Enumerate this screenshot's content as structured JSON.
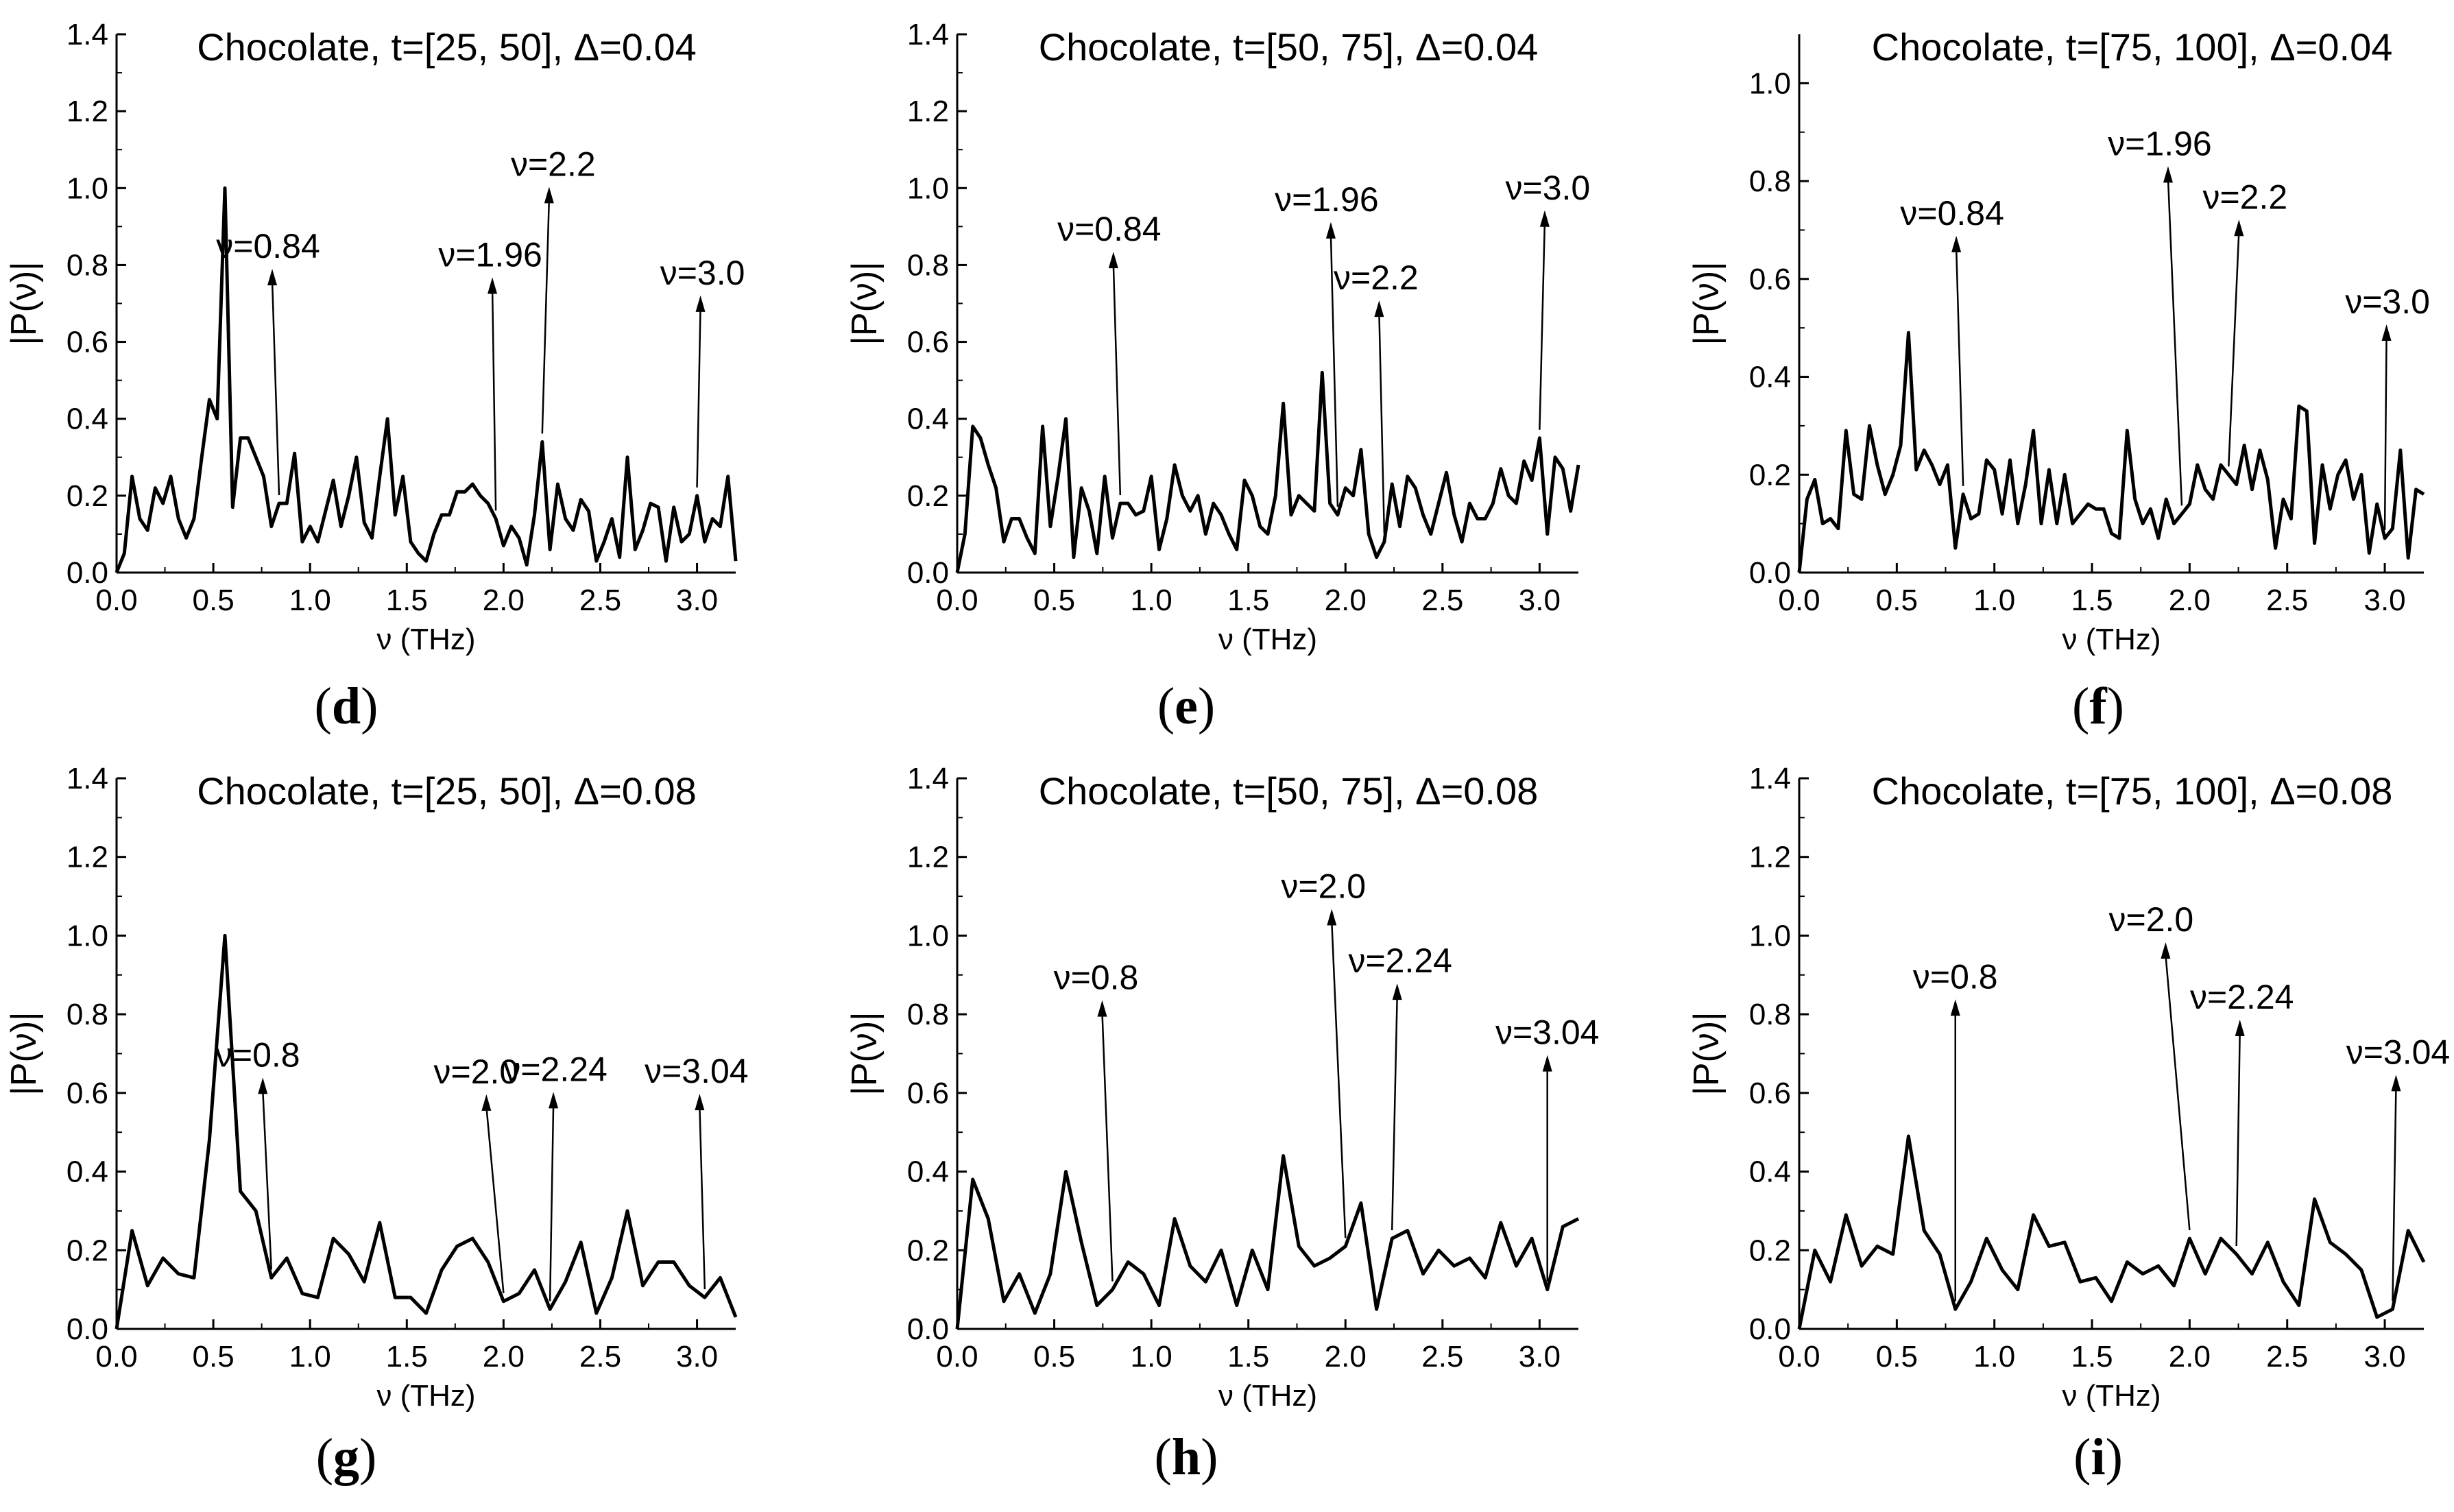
{
  "figure": {
    "ylabel": "|P(ν)|",
    "xlabel": "ν (THz)"
  },
  "chart_data": [
    {
      "id": "d",
      "label": "d",
      "type": "line",
      "title": "Chocolate, t=[25, 50], Δ=0.04",
      "xlabel": "ν (THz)",
      "ylabel": "|P(ν)|",
      "xlim": [
        0,
        3.2
      ],
      "ylim": [
        0,
        1.4
      ],
      "xticks": [
        "0.0",
        "0.5",
        "1.0",
        "1.5",
        "2.0",
        "2.5",
        "3.0"
      ],
      "yticks": [
        "0.0",
        "0.2",
        "0.4",
        "0.6",
        "0.8",
        "1.0",
        "1.2",
        "1.4"
      ],
      "series": [
        {
          "name": "|P(ν)|",
          "x": [
            0,
            0.04,
            0.08,
            0.12,
            0.16,
            0.2,
            0.24,
            0.28,
            0.32,
            0.36,
            0.4,
            0.44,
            0.48,
            0.52,
            0.56,
            0.6,
            0.64,
            0.68,
            0.72,
            0.76,
            0.8,
            0.84,
            0.88,
            0.92,
            0.96,
            1.0,
            1.04,
            1.08,
            1.12,
            1.16,
            1.2,
            1.24,
            1.28,
            1.32,
            1.36,
            1.4,
            1.44,
            1.48,
            1.52,
            1.56,
            1.6,
            1.64,
            1.68,
            1.72,
            1.76,
            1.8,
            1.84,
            1.88,
            1.92,
            1.96,
            2.0,
            2.04,
            2.08,
            2.12,
            2.16,
            2.2,
            2.24,
            2.28,
            2.32,
            2.36,
            2.4,
            2.44,
            2.48,
            2.52,
            2.56,
            2.6,
            2.64,
            2.68,
            2.72,
            2.76,
            2.8,
            2.84,
            2.88,
            2.92,
            2.96,
            3.0,
            3.04,
            3.08,
            3.12,
            3.16,
            3.2
          ],
          "y": [
            0.0,
            0.05,
            0.25,
            0.14,
            0.11,
            0.22,
            0.18,
            0.25,
            0.14,
            0.09,
            0.14,
            0.3,
            0.45,
            0.4,
            1.0,
            0.17,
            0.35,
            0.35,
            0.3,
            0.25,
            0.12,
            0.18,
            0.18,
            0.31,
            0.08,
            0.12,
            0.08,
            0.16,
            0.24,
            0.12,
            0.2,
            0.3,
            0.13,
            0.09,
            0.25,
            0.4,
            0.15,
            0.25,
            0.08,
            0.05,
            0.03,
            0.1,
            0.15,
            0.15,
            0.21,
            0.21,
            0.23,
            0.2,
            0.18,
            0.14,
            0.07,
            0.12,
            0.09,
            0.02,
            0.15,
            0.34,
            0.06,
            0.23,
            0.14,
            0.11,
            0.19,
            0.16,
            0.03,
            0.08,
            0.14,
            0.04,
            0.3,
            0.06,
            0.11,
            0.18,
            0.17,
            0.03,
            0.17,
            0.08,
            0.1,
            0.2,
            0.08,
            0.14,
            0.12,
            0.25,
            0.03
          ]
        }
      ],
      "annotations": [
        {
          "text": "ν=0.84",
          "x": 0.84
        },
        {
          "text": "ν=1.96",
          "x": 1.96
        },
        {
          "text": "ν=2.2",
          "x": 2.2
        },
        {
          "text": "ν=3.0",
          "x": 3.0
        }
      ]
    },
    {
      "id": "e",
      "label": "e",
      "type": "line",
      "title": "Chocolate, t=[50, 75], Δ=0.04",
      "xlabel": "ν (THz)",
      "ylabel": "|P(ν)|",
      "xlim": [
        0,
        3.2
      ],
      "ylim": [
        0,
        1.4
      ],
      "xticks": [
        "0.0",
        "0.5",
        "1.0",
        "1.5",
        "2.0",
        "2.5",
        "3.0"
      ],
      "yticks": [
        "0.0",
        "0.2",
        "0.4",
        "0.6",
        "0.8",
        "1.0",
        "1.2",
        "1.4"
      ],
      "series": [
        {
          "name": "|P(ν)|",
          "x": [
            0,
            0.04,
            0.08,
            0.12,
            0.16,
            0.2,
            0.24,
            0.28,
            0.32,
            0.36,
            0.4,
            0.44,
            0.48,
            0.52,
            0.56,
            0.6,
            0.64,
            0.68,
            0.72,
            0.76,
            0.8,
            0.84,
            0.88,
            0.92,
            0.96,
            1.0,
            1.04,
            1.08,
            1.12,
            1.16,
            1.2,
            1.24,
            1.28,
            1.32,
            1.36,
            1.4,
            1.44,
            1.48,
            1.52,
            1.56,
            1.6,
            1.64,
            1.68,
            1.72,
            1.76,
            1.8,
            1.84,
            1.88,
            1.92,
            1.96,
            2.0,
            2.04,
            2.08,
            2.12,
            2.16,
            2.2,
            2.24,
            2.28,
            2.32,
            2.36,
            2.4,
            2.44,
            2.48,
            2.52,
            2.56,
            2.6,
            2.64,
            2.68,
            2.72,
            2.76,
            2.8,
            2.84,
            2.88,
            2.92,
            2.96,
            3.0,
            3.04,
            3.08,
            3.12,
            3.16,
            3.2
          ],
          "y": [
            0.0,
            0.1,
            0.38,
            0.35,
            0.28,
            0.22,
            0.08,
            0.14,
            0.14,
            0.09,
            0.05,
            0.38,
            0.12,
            0.25,
            0.4,
            0.04,
            0.22,
            0.16,
            0.05,
            0.25,
            0.09,
            0.18,
            0.18,
            0.15,
            0.16,
            0.25,
            0.06,
            0.14,
            0.28,
            0.2,
            0.16,
            0.2,
            0.1,
            0.18,
            0.15,
            0.1,
            0.06,
            0.24,
            0.2,
            0.12,
            0.1,
            0.2,
            0.44,
            0.15,
            0.2,
            0.18,
            0.16,
            0.52,
            0.18,
            0.15,
            0.22,
            0.2,
            0.32,
            0.1,
            0.04,
            0.08,
            0.23,
            0.12,
            0.25,
            0.22,
            0.15,
            0.1,
            0.18,
            0.26,
            0.15,
            0.08,
            0.18,
            0.14,
            0.14,
            0.18,
            0.27,
            0.2,
            0.18,
            0.29,
            0.24,
            0.35,
            0.1,
            0.3,
            0.27,
            0.16,
            0.28
          ]
        }
      ],
      "annotations": [
        {
          "text": "ν=0.84",
          "x": 0.84
        },
        {
          "text": "ν=1.96",
          "x": 1.96
        },
        {
          "text": "ν=2.2",
          "x": 2.2
        },
        {
          "text": "ν=3.0",
          "x": 3.0
        }
      ]
    },
    {
      "id": "f",
      "label": "f",
      "type": "line",
      "title": "Chocolate, t=[75, 100], Δ=0.04",
      "xlabel": "ν (THz)",
      "ylabel": "|P(ν)|",
      "xlim": [
        0,
        3.2
      ],
      "ylim": [
        0,
        1.1
      ],
      "xticks": [
        "0.0",
        "0.5",
        "1.0",
        "1.5",
        "2.0",
        "2.5",
        "3.0"
      ],
      "yticks": [
        "0.0",
        "0.2",
        "0.4",
        "0.6",
        "0.8",
        "1.0"
      ],
      "series": [
        {
          "name": "|P(ν)|",
          "x": [
            0,
            0.04,
            0.08,
            0.12,
            0.16,
            0.2,
            0.24,
            0.28,
            0.32,
            0.36,
            0.4,
            0.44,
            0.48,
            0.52,
            0.56,
            0.6,
            0.64,
            0.68,
            0.72,
            0.76,
            0.8,
            0.84,
            0.88,
            0.92,
            0.96,
            1.0,
            1.04,
            1.08,
            1.12,
            1.16,
            1.2,
            1.24,
            1.28,
            1.32,
            1.36,
            1.4,
            1.44,
            1.48,
            1.52,
            1.56,
            1.6,
            1.64,
            1.68,
            1.72,
            1.76,
            1.8,
            1.84,
            1.88,
            1.92,
            1.96,
            2.0,
            2.04,
            2.08,
            2.12,
            2.16,
            2.2,
            2.24,
            2.28,
            2.32,
            2.36,
            2.4,
            2.44,
            2.48,
            2.52,
            2.56,
            2.6,
            2.64,
            2.68,
            2.72,
            2.76,
            2.8,
            2.84,
            2.88,
            2.92,
            2.96,
            3.0,
            3.04,
            3.08,
            3.12,
            3.16,
            3.2
          ],
          "y": [
            0.0,
            0.15,
            0.19,
            0.1,
            0.11,
            0.09,
            0.29,
            0.16,
            0.15,
            0.3,
            0.22,
            0.16,
            0.2,
            0.26,
            0.49,
            0.21,
            0.25,
            0.22,
            0.18,
            0.22,
            0.05,
            0.16,
            0.11,
            0.12,
            0.23,
            0.21,
            0.12,
            0.23,
            0.1,
            0.18,
            0.29,
            0.1,
            0.21,
            0.1,
            0.2,
            0.1,
            0.12,
            0.14,
            0.13,
            0.13,
            0.08,
            0.07,
            0.29,
            0.15,
            0.1,
            0.13,
            0.07,
            0.15,
            0.1,
            0.12,
            0.14,
            0.22,
            0.17,
            0.15,
            0.22,
            0.2,
            0.18,
            0.26,
            0.17,
            0.25,
            0.19,
            0.05,
            0.15,
            0.11,
            0.34,
            0.33,
            0.06,
            0.22,
            0.13,
            0.2,
            0.23,
            0.15,
            0.2,
            0.04,
            0.14,
            0.07,
            0.09,
            0.25,
            0.03,
            0.17,
            0.16
          ]
        }
      ],
      "annotations": [
        {
          "text": "ν=0.84",
          "x": 0.84
        },
        {
          "text": "ν=1.96",
          "x": 1.96
        },
        {
          "text": "ν=2.2",
          "x": 2.2
        },
        {
          "text": "ν=3.0",
          "x": 3.0
        }
      ]
    },
    {
      "id": "g",
      "label": "g",
      "type": "line",
      "title": "Chocolate, t=[25, 50], Δ=0.08",
      "xlabel": "ν (THz)",
      "ylabel": "|P(ν)|",
      "xlim": [
        0,
        3.2
      ],
      "ylim": [
        0,
        1.4
      ],
      "xticks": [
        "0.0",
        "0.5",
        "1.0",
        "1.5",
        "2.0",
        "2.5",
        "3.0"
      ],
      "yticks": [
        "0.0",
        "0.2",
        "0.4",
        "0.6",
        "0.8",
        "1.0",
        "1.2",
        "1.4"
      ],
      "series": [
        {
          "name": "|P(ν)|",
          "x": [
            0,
            0.08,
            0.16,
            0.24,
            0.32,
            0.4,
            0.48,
            0.56,
            0.64,
            0.72,
            0.8,
            0.88,
            0.96,
            1.04,
            1.12,
            1.2,
            1.28,
            1.36,
            1.44,
            1.52,
            1.6,
            1.68,
            1.76,
            1.84,
            1.92,
            2.0,
            2.08,
            2.16,
            2.24,
            2.32,
            2.4,
            2.48,
            2.56,
            2.64,
            2.72,
            2.8,
            2.88,
            2.96,
            3.04,
            3.12,
            3.2
          ],
          "y": [
            0.0,
            0.25,
            0.11,
            0.18,
            0.14,
            0.13,
            0.48,
            1.0,
            0.35,
            0.3,
            0.13,
            0.18,
            0.09,
            0.08,
            0.23,
            0.19,
            0.12,
            0.27,
            0.08,
            0.08,
            0.04,
            0.15,
            0.21,
            0.23,
            0.17,
            0.07,
            0.09,
            0.15,
            0.05,
            0.12,
            0.22,
            0.04,
            0.13,
            0.3,
            0.11,
            0.17,
            0.17,
            0.11,
            0.08,
            0.13,
            0.03
          ]
        }
      ],
      "annotations": [
        {
          "text": "ν=0.8",
          "x": 0.8
        },
        {
          "text": "ν=2.0",
          "x": 2.0
        },
        {
          "text": "ν=2.24",
          "x": 2.24
        },
        {
          "text": "ν=3.04",
          "x": 3.04
        }
      ]
    },
    {
      "id": "h",
      "label": "h",
      "type": "line",
      "title": "Chocolate, t=[50, 75], Δ=0.08",
      "xlabel": "ν (THz)",
      "ylabel": "|P(ν)|",
      "xlim": [
        0,
        3.2
      ],
      "ylim": [
        0,
        1.4
      ],
      "xticks": [
        "0.0",
        "0.5",
        "1.0",
        "1.5",
        "2.0",
        "2.5",
        "3.0"
      ],
      "yticks": [
        "0.0",
        "0.2",
        "0.4",
        "0.6",
        "0.8",
        "1.0",
        "1.2",
        "1.4"
      ],
      "series": [
        {
          "name": "|P(ν)|",
          "x": [
            0,
            0.08,
            0.16,
            0.24,
            0.32,
            0.4,
            0.48,
            0.56,
            0.64,
            0.72,
            0.8,
            0.88,
            0.96,
            1.04,
            1.12,
            1.2,
            1.28,
            1.36,
            1.44,
            1.52,
            1.6,
            1.68,
            1.76,
            1.84,
            1.92,
            2.0,
            2.08,
            2.16,
            2.24,
            2.32,
            2.4,
            2.48,
            2.56,
            2.64,
            2.72,
            2.8,
            2.88,
            2.96,
            3.04,
            3.12,
            3.2
          ],
          "y": [
            0.0,
            0.38,
            0.28,
            0.07,
            0.14,
            0.04,
            0.14,
            0.4,
            0.22,
            0.06,
            0.1,
            0.17,
            0.14,
            0.06,
            0.28,
            0.16,
            0.12,
            0.2,
            0.06,
            0.2,
            0.1,
            0.44,
            0.21,
            0.16,
            0.18,
            0.21,
            0.32,
            0.05,
            0.23,
            0.25,
            0.14,
            0.2,
            0.16,
            0.18,
            0.13,
            0.27,
            0.16,
            0.23,
            0.1,
            0.26,
            0.28
          ]
        }
      ],
      "annotations": [
        {
          "text": "ν=0.8",
          "x": 0.8
        },
        {
          "text": "ν=2.0",
          "x": 2.0
        },
        {
          "text": "ν=2.24",
          "x": 2.24
        },
        {
          "text": "ν=3.04",
          "x": 3.04
        }
      ]
    },
    {
      "id": "i",
      "label": "i",
      "type": "line",
      "title": "Chocolate, t=[75, 100], Δ=0.08",
      "xlabel": "ν (THz)",
      "ylabel": "|P(ν)|",
      "xlim": [
        0,
        3.2
      ],
      "ylim": [
        0,
        1.4
      ],
      "xticks": [
        "0.0",
        "0.5",
        "1.0",
        "1.5",
        "2.0",
        "2.5",
        "3.0"
      ],
      "yticks": [
        "0.0",
        "0.2",
        "0.4",
        "0.6",
        "0.8",
        "1.0",
        "1.2",
        "1.4"
      ],
      "series": [
        {
          "name": "|P(ν)|",
          "x": [
            0,
            0.08,
            0.16,
            0.24,
            0.32,
            0.4,
            0.48,
            0.56,
            0.64,
            0.72,
            0.8,
            0.88,
            0.96,
            1.04,
            1.12,
            1.2,
            1.28,
            1.36,
            1.44,
            1.52,
            1.6,
            1.68,
            1.76,
            1.84,
            1.92,
            2.0,
            2.08,
            2.16,
            2.24,
            2.32,
            2.4,
            2.48,
            2.56,
            2.64,
            2.72,
            2.8,
            2.88,
            2.96,
            3.04,
            3.12,
            3.2
          ],
          "y": [
            0.0,
            0.2,
            0.12,
            0.29,
            0.16,
            0.21,
            0.19,
            0.49,
            0.25,
            0.19,
            0.05,
            0.12,
            0.23,
            0.15,
            0.1,
            0.29,
            0.21,
            0.22,
            0.12,
            0.13,
            0.07,
            0.17,
            0.14,
            0.16,
            0.11,
            0.23,
            0.14,
            0.23,
            0.19,
            0.14,
            0.22,
            0.12,
            0.06,
            0.33,
            0.22,
            0.19,
            0.15,
            0.03,
            0.05,
            0.25,
            0.17
          ]
        }
      ],
      "annotations": [
        {
          "text": "ν=0.8",
          "x": 0.8
        },
        {
          "text": "ν=2.0",
          "x": 2.0
        },
        {
          "text": "ν=2.24",
          "x": 2.24
        },
        {
          "text": "ν=3.04",
          "x": 3.04
        }
      ]
    }
  ]
}
